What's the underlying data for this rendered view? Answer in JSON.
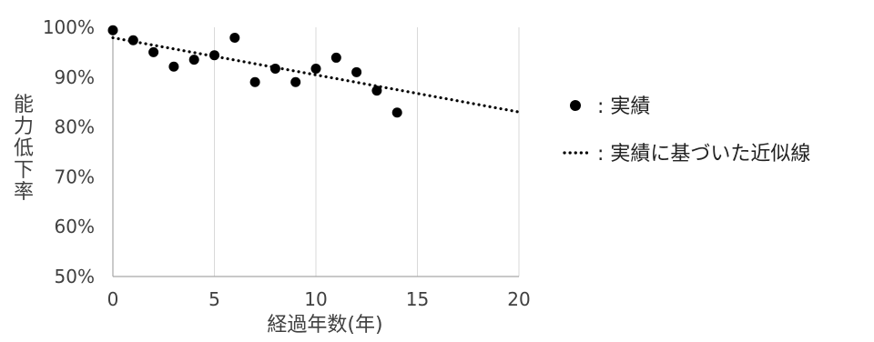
{
  "chart_data": {
    "type": "scatter",
    "xlabel": "経過年数(年)",
    "ylabel": "能力低下率",
    "xlim": [
      0,
      20
    ],
    "ylim": [
      0.5,
      1.0
    ],
    "x_ticks": [
      0,
      5,
      10,
      15,
      20
    ],
    "x_tick_labels": [
      "0",
      "5",
      "10",
      "15",
      "20"
    ],
    "y_ticks": [
      0.5,
      0.6,
      0.7,
      0.8,
      0.9,
      1.0
    ],
    "y_tick_labels": [
      "50%",
      "60%",
      "70%",
      "80%",
      "90%",
      "100%"
    ],
    "grid": {
      "vertical": true,
      "horizontal": false
    },
    "series": [
      {
        "name": "実績",
        "type": "scatter",
        "marker": "filled-circle",
        "color": "#000000",
        "points": [
          {
            "x": 0,
            "y": 0.994
          },
          {
            "x": 1,
            "y": 0.974
          },
          {
            "x": 2,
            "y": 0.95
          },
          {
            "x": 3,
            "y": 0.921
          },
          {
            "x": 4,
            "y": 0.935
          },
          {
            "x": 5,
            "y": 0.944
          },
          {
            "x": 6,
            "y": 0.979
          },
          {
            "x": 7,
            "y": 0.89
          },
          {
            "x": 8,
            "y": 0.917
          },
          {
            "x": 9,
            "y": 0.89
          },
          {
            "x": 10,
            "y": 0.917
          },
          {
            "x": 11,
            "y": 0.939
          },
          {
            "x": 12,
            "y": 0.91
          },
          {
            "x": 13,
            "y": 0.873
          },
          {
            "x": 14,
            "y": 0.829
          }
        ]
      },
      {
        "name": "実績に基づいた近似線",
        "type": "line",
        "style": "dotted",
        "color": "#000000",
        "x": [
          0,
          20
        ],
        "y": [
          0.979,
          0.83
        ]
      }
    ],
    "legend": {
      "position": "right",
      "entries": [
        {
          "symbol": "●",
          "label": ": 実績"
        },
        {
          "symbol": "·····",
          "label": ": 実績に基づいた近似線"
        }
      ]
    }
  }
}
